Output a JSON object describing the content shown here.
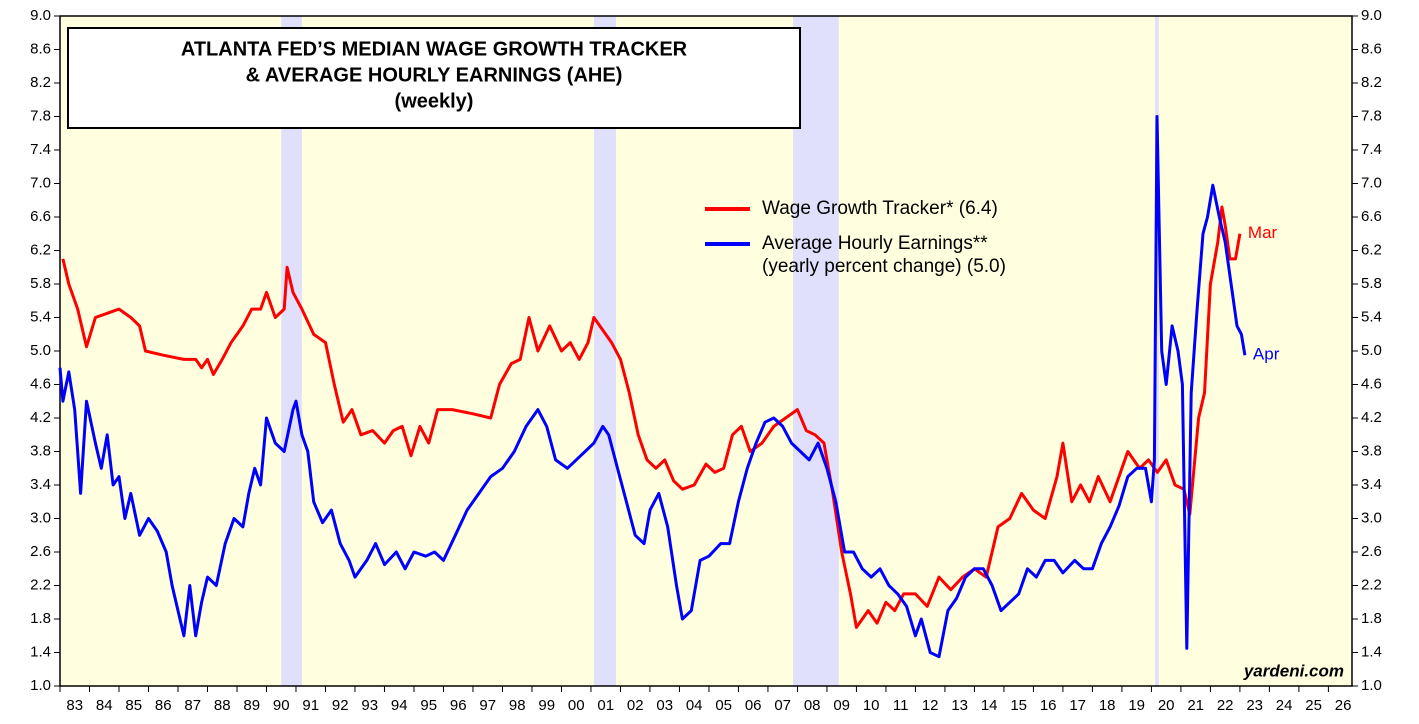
{
  "chart_data": {
    "type": "line",
    "title_lines": [
      "ATLANTA FED’S MEDIAN WAGE GROWTH TRACKER",
      "& AVERAGE HOURLY EARNINGS (AHE)",
      "(weekly)"
    ],
    "source": "yardeni.com",
    "background": "#ffffe0",
    "shade_color": "#e0e0fc",
    "shaded_periods": [
      [
        1990.5,
        1991.2
      ],
      [
        2001.1,
        2001.85
      ],
      [
        2007.85,
        2009.4
      ],
      [
        2020.12,
        2020.25
      ]
    ],
    "xlim": [
      1983,
      2026.8
    ],
    "ylim": [
      1.0,
      9.0
    ],
    "yticks": [
      {
        "value": 1.0,
        "label": "1.0"
      },
      {
        "value": 1.4,
        "label": "1.4"
      },
      {
        "value": 1.8,
        "label": "1.8"
      },
      {
        "value": 2.2,
        "label": "2.2"
      },
      {
        "value": 2.6,
        "label": "2.6"
      },
      {
        "value": 3.0,
        "label": "3.0"
      },
      {
        "value": 3.4,
        "label": "3.4"
      },
      {
        "value": 3.8,
        "label": "3.8"
      },
      {
        "value": 4.2,
        "label": "4.2"
      },
      {
        "value": 4.6,
        "label": "4.6"
      },
      {
        "value": 5.0,
        "label": "5.0"
      },
      {
        "value": 5.4,
        "label": "5.4"
      },
      {
        "value": 5.8,
        "label": "5.8"
      },
      {
        "value": 6.2,
        "label": "6.2"
      },
      {
        "value": 6.6,
        "label": "6.6"
      },
      {
        "value": 7.0,
        "label": "7.0"
      },
      {
        "value": 7.4,
        "label": "7.4"
      },
      {
        "value": 7.8,
        "label": "7.8"
      },
      {
        "value": 8.2,
        "label": "8.2"
      },
      {
        "value": 8.6,
        "label": "8.6"
      },
      {
        "value": 9.0,
        "label": "9.0"
      }
    ],
    "xticks": [
      {
        "value": 1983,
        "label": "83"
      },
      {
        "value": 1984,
        "label": "84"
      },
      {
        "value": 1985,
        "label": "85"
      },
      {
        "value": 1986,
        "label": "86"
      },
      {
        "value": 1987,
        "label": "87"
      },
      {
        "value": 1988,
        "label": "88"
      },
      {
        "value": 1989,
        "label": "89"
      },
      {
        "value": 1990,
        "label": "90"
      },
      {
        "value": 1991,
        "label": "91"
      },
      {
        "value": 1992,
        "label": "92"
      },
      {
        "value": 1993,
        "label": "93"
      },
      {
        "value": 1994,
        "label": "94"
      },
      {
        "value": 1995,
        "label": "95"
      },
      {
        "value": 1996,
        "label": "96"
      },
      {
        "value": 1997,
        "label": "97"
      },
      {
        "value": 1998,
        "label": "98"
      },
      {
        "value": 1999,
        "label": "99"
      },
      {
        "value": 2000,
        "label": "00"
      },
      {
        "value": 2001,
        "label": "01"
      },
      {
        "value": 2002,
        "label": "02"
      },
      {
        "value": 2003,
        "label": "03"
      },
      {
        "value": 2004,
        "label": "04"
      },
      {
        "value": 2005,
        "label": "05"
      },
      {
        "value": 2006,
        "label": "06"
      },
      {
        "value": 2007,
        "label": "07"
      },
      {
        "value": 2008,
        "label": "08"
      },
      {
        "value": 2009,
        "label": "09"
      },
      {
        "value": 2010,
        "label": "10"
      },
      {
        "value": 2011,
        "label": "11"
      },
      {
        "value": 2012,
        "label": "12"
      },
      {
        "value": 2013,
        "label": "13"
      },
      {
        "value": 2014,
        "label": "14"
      },
      {
        "value": 2015,
        "label": "15"
      },
      {
        "value": 2016,
        "label": "16"
      },
      {
        "value": 2017,
        "label": "17"
      },
      {
        "value": 2018,
        "label": "18"
      },
      {
        "value": 2019,
        "label": "19"
      },
      {
        "value": 2020,
        "label": "20"
      },
      {
        "value": 2021,
        "label": "21"
      },
      {
        "value": 2022,
        "label": "22"
      },
      {
        "value": 2023,
        "label": "23"
      },
      {
        "value": 2024,
        "label": "24"
      },
      {
        "value": 2025,
        "label": "25"
      },
      {
        "value": 2026,
        "label": "26"
      }
    ],
    "series": [
      {
        "name": "Wage Growth Tracker* (6.4)",
        "color": "#ff0000",
        "end_label": "Mar",
        "x": [
          1983.1,
          1983.3,
          1983.6,
          1983.9,
          1984.2,
          1984.6,
          1985.0,
          1985.4,
          1985.7,
          1985.9,
          1986.5,
          1987.2,
          1987.6,
          1987.8,
          1988.0,
          1988.2,
          1988.5,
          1988.8,
          1989.2,
          1989.5,
          1989.8,
          1990.0,
          1990.3,
          1990.6,
          1990.7,
          1990.9,
          1991.2,
          1991.6,
          1992.0,
          1992.3,
          1992.6,
          1992.9,
          1993.2,
          1993.6,
          1994.0,
          1994.3,
          1994.6,
          1994.9,
          1995.2,
          1995.5,
          1995.8,
          1996.3,
          1997.0,
          1997.6,
          1997.9,
          1998.3,
          1998.6,
          1998.9,
          1999.2,
          1999.6,
          2000.0,
          2000.3,
          2000.6,
          2000.9,
          2001.1,
          2001.4,
          2001.7,
          2002.0,
          2002.3,
          2002.6,
          2002.9,
          2003.2,
          2003.5,
          2003.8,
          2004.1,
          2004.5,
          2004.9,
          2005.2,
          2005.5,
          2005.8,
          2006.1,
          2006.4,
          2006.8,
          2007.2,
          2007.6,
          2008.0,
          2008.3,
          2008.6,
          2008.9,
          2009.2,
          2009.5,
          2009.8,
          2010.0,
          2010.4,
          2010.7,
          2011.0,
          2011.3,
          2011.6,
          2012.0,
          2012.4,
          2012.8,
          2013.2,
          2013.6,
          2014.0,
          2014.4,
          2014.8,
          2015.2,
          2015.6,
          2016.0,
          2016.4,
          2016.8,
          2017.0,
          2017.3,
          2017.6,
          2017.9,
          2018.2,
          2018.6,
          2018.9,
          2019.2,
          2019.6,
          2019.9,
          2020.2,
          2020.5,
          2020.8,
          2021.1,
          2021.3,
          2021.6,
          2021.8,
          2022.0,
          2022.25,
          2022.39,
          2022.5,
          2022.66,
          2022.85,
          2023.0
        ],
        "values": [
          6.1,
          5.8,
          5.5,
          5.05,
          5.4,
          5.45,
          5.5,
          5.4,
          5.3,
          5.0,
          4.95,
          4.9,
          4.9,
          4.8,
          4.9,
          4.72,
          4.9,
          5.1,
          5.3,
          5.5,
          5.5,
          5.7,
          5.4,
          5.5,
          6.0,
          5.7,
          5.5,
          5.2,
          5.1,
          4.6,
          4.15,
          4.3,
          4.0,
          4.05,
          3.9,
          4.05,
          4.1,
          3.75,
          4.1,
          3.9,
          4.3,
          4.3,
          4.25,
          4.2,
          4.6,
          4.85,
          4.9,
          5.4,
          5.0,
          5.3,
          5.0,
          5.1,
          4.9,
          5.1,
          5.4,
          5.25,
          5.1,
          4.9,
          4.5,
          4.0,
          3.7,
          3.6,
          3.7,
          3.45,
          3.35,
          3.4,
          3.65,
          3.55,
          3.6,
          4.0,
          4.1,
          3.8,
          3.9,
          4.1,
          4.2,
          4.3,
          4.05,
          4.0,
          3.9,
          3.3,
          2.6,
          2.1,
          1.7,
          1.9,
          1.75,
          2.0,
          1.9,
          2.1,
          2.1,
          1.95,
          2.3,
          2.15,
          2.3,
          2.4,
          2.3,
          2.9,
          3.0,
          3.3,
          3.1,
          3.0,
          3.5,
          3.9,
          3.2,
          3.4,
          3.2,
          3.5,
          3.2,
          3.5,
          3.8,
          3.6,
          3.7,
          3.55,
          3.7,
          3.4,
          3.35,
          3.05,
          4.2,
          4.5,
          5.8,
          6.3,
          6.72,
          6.5,
          6.1,
          6.1,
          6.4
        ]
      },
      {
        "name": "Average Hourly Earnings**",
        "legend_note": "(yearly percent change) (5.0)",
        "color": "#0000ff",
        "end_label": "Apr",
        "x": [
          1983.0,
          1983.1,
          1983.3,
          1983.5,
          1983.7,
          1983.9,
          1984.2,
          1984.4,
          1984.6,
          1984.8,
          1985.0,
          1985.2,
          1985.4,
          1985.7,
          1986.0,
          1986.3,
          1986.6,
          1986.8,
          1987.0,
          1987.2,
          1987.4,
          1987.6,
          1987.8,
          1988.0,
          1988.3,
          1988.6,
          1988.9,
          1989.2,
          1989.4,
          1989.6,
          1989.8,
          1990.0,
          1990.3,
          1990.6,
          1990.9,
          1991.0,
          1991.2,
          1991.4,
          1991.6,
          1991.9,
          1992.2,
          1992.5,
          1992.8,
          1993.0,
          1993.4,
          1993.7,
          1994.0,
          1994.4,
          1994.7,
          1995.0,
          1995.4,
          1995.7,
          1996.0,
          1996.4,
          1996.8,
          1997.2,
          1997.6,
          1998.0,
          1998.4,
          1998.8,
          1999.2,
          1999.5,
          1999.8,
          2000.2,
          2000.5,
          2000.8,
          2001.1,
          2001.4,
          2001.6,
          2001.9,
          2002.2,
          2002.5,
          2002.8,
          2003.0,
          2003.3,
          2003.6,
          2003.9,
          2004.1,
          2004.4,
          2004.7,
          2005.0,
          2005.4,
          2005.7,
          2006.0,
          2006.3,
          2006.6,
          2006.9,
          2007.2,
          2007.5,
          2007.8,
          2008.1,
          2008.4,
          2008.7,
          2009.0,
          2009.3,
          2009.6,
          2009.9,
          2010.2,
          2010.5,
          2010.8,
          2011.1,
          2011.4,
          2011.7,
          2012.0,
          2012.2,
          2012.5,
          2012.8,
          2013.1,
          2013.4,
          2013.7,
          2014.0,
          2014.3,
          2014.6,
          2014.9,
          2015.2,
          2015.5,
          2015.8,
          2016.1,
          2016.4,
          2016.7,
          2017.0,
          2017.4,
          2017.7,
          2018.0,
          2018.3,
          2018.6,
          2018.9,
          2019.2,
          2019.5,
          2019.8,
          2020.0,
          2020.1,
          2020.19,
          2020.35,
          2020.5,
          2020.7,
          2020.9,
          2021.05,
          2021.2,
          2021.35,
          2021.55,
          2021.75,
          2021.9,
          2022.08,
          2022.3,
          2022.5,
          2022.7,
          2022.9,
          2023.05,
          2023.17
        ],
        "values": [
          4.8,
          4.4,
          4.75,
          4.3,
          3.3,
          4.4,
          3.9,
          3.6,
          4.0,
          3.4,
          3.5,
          3.0,
          3.3,
          2.8,
          3.0,
          2.85,
          2.6,
          2.2,
          1.9,
          1.6,
          2.2,
          1.6,
          2.0,
          2.3,
          2.2,
          2.7,
          3.0,
          2.9,
          3.3,
          3.6,
          3.4,
          4.2,
          3.9,
          3.8,
          4.3,
          4.4,
          4.0,
          3.8,
          3.2,
          2.95,
          3.1,
          2.7,
          2.5,
          2.3,
          2.5,
          2.7,
          2.45,
          2.6,
          2.4,
          2.6,
          2.55,
          2.6,
          2.5,
          2.8,
          3.1,
          3.3,
          3.5,
          3.6,
          3.8,
          4.1,
          4.3,
          4.1,
          3.7,
          3.6,
          3.7,
          3.8,
          3.9,
          4.1,
          4.0,
          3.6,
          3.2,
          2.8,
          2.7,
          3.1,
          3.3,
          2.9,
          2.2,
          1.8,
          1.9,
          2.5,
          2.55,
          2.7,
          2.7,
          3.2,
          3.6,
          3.9,
          4.15,
          4.2,
          4.1,
          3.9,
          3.8,
          3.7,
          3.9,
          3.6,
          3.2,
          2.6,
          2.6,
          2.4,
          2.3,
          2.4,
          2.2,
          2.1,
          1.95,
          1.6,
          1.8,
          1.4,
          1.35,
          1.9,
          2.05,
          2.3,
          2.4,
          2.4,
          2.2,
          1.9,
          2.0,
          2.1,
          2.4,
          2.3,
          2.5,
          2.5,
          2.35,
          2.5,
          2.4,
          2.4,
          2.7,
          2.9,
          3.15,
          3.5,
          3.6,
          3.6,
          3.2,
          3.7,
          7.8,
          5.0,
          4.6,
          5.3,
          5.0,
          4.6,
          1.45,
          4.5,
          5.5,
          6.4,
          6.6,
          6.98,
          6.6,
          6.3,
          5.8,
          5.3,
          5.2,
          4.95
        ]
      }
    ]
  }
}
